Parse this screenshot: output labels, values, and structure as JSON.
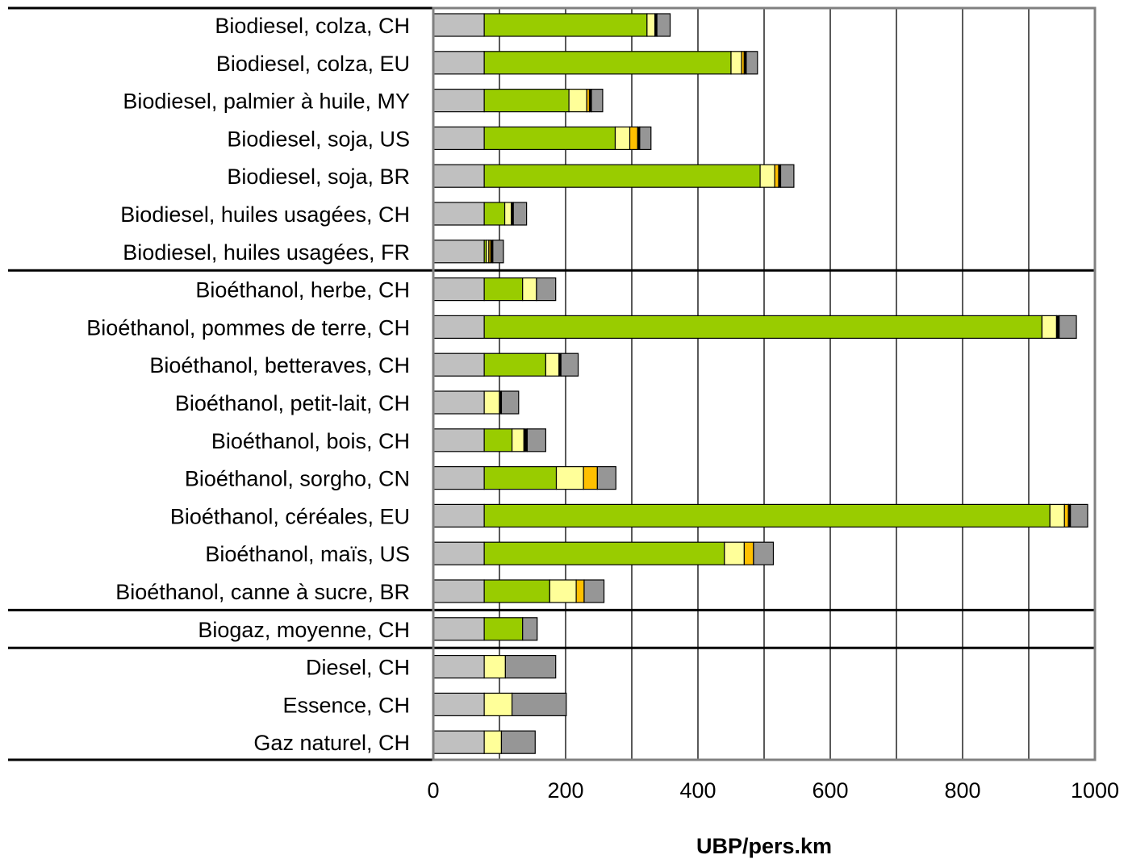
{
  "chart_data": {
    "type": "bar",
    "orientation": "horizontal",
    "stacked": true,
    "xlabel": "UBP/pers.km",
    "xlim": [
      0,
      1000
    ],
    "xticks": [
      0,
      200,
      400,
      600,
      800,
      1000
    ],
    "grid": "vertical",
    "legend": "none",
    "segment_colors": [
      "#c0c0c0",
      "#99cc00",
      "#ffff99",
      "#ffc000",
      "#000000",
      "#969696"
    ],
    "categories": [
      "Biodiesel, colza, CH",
      "Biodiesel, colza, EU",
      "Biodiesel, palmier à huile, MY",
      "Biodiesel, soja, US",
      "Biodiesel, soja, BR",
      "Biodiesel, huiles usagées, CH",
      "Biodiesel, huiles usagées, FR",
      "Bioéthanol, herbe, CH",
      "Bioéthanol, pommes de terre, CH",
      "Bioéthanol, betteraves, CH",
      "Bioéthanol, petit-lait, CH",
      "Bioéthanol, bois, CH",
      "Bioéthanol, sorgho, CN",
      "Bioéthanol, céréales, EU",
      "Bioéthanol, maïs, US",
      "Bioéthanol, canne à sucre, BR",
      "Biogaz, moyenne, CH",
      "Diesel, CH",
      "Essence, CH",
      "Gaz naturel, CH"
    ],
    "group_separators_after": [
      6,
      15,
      16
    ],
    "segments": [
      [
        77,
        246,
        12,
        0,
        3,
        20
      ],
      [
        77,
        373,
        16,
        4,
        3,
        17
      ],
      [
        77,
        128,
        27,
        4,
        3,
        17
      ],
      [
        77,
        198,
        22,
        12,
        3,
        17
      ],
      [
        77,
        417,
        22,
        6,
        3,
        20
      ],
      [
        77,
        31,
        10,
        0,
        3,
        20
      ],
      [
        77,
        3,
        4,
        3,
        3,
        16
      ],
      [
        77,
        58,
        21,
        0,
        0,
        29
      ],
      [
        77,
        843,
        22,
        0,
        4,
        26
      ],
      [
        77,
        93,
        20,
        0,
        3,
        26
      ],
      [
        77,
        0,
        23,
        0,
        3,
        26
      ],
      [
        77,
        42,
        18,
        0,
        5,
        28
      ],
      [
        77,
        109,
        41,
        21,
        0,
        28
      ],
      [
        77,
        855,
        22,
        6,
        3,
        26
      ],
      [
        77,
        363,
        30,
        14,
        0,
        30
      ],
      [
        77,
        99,
        40,
        12,
        0,
        30
      ],
      [
        77,
        58,
        0,
        0,
        0,
        22
      ],
      [
        77,
        0,
        32,
        0,
        0,
        76
      ],
      [
        77,
        0,
        42,
        0,
        0,
        82
      ],
      [
        77,
        0,
        26,
        0,
        0,
        51
      ]
    ]
  }
}
